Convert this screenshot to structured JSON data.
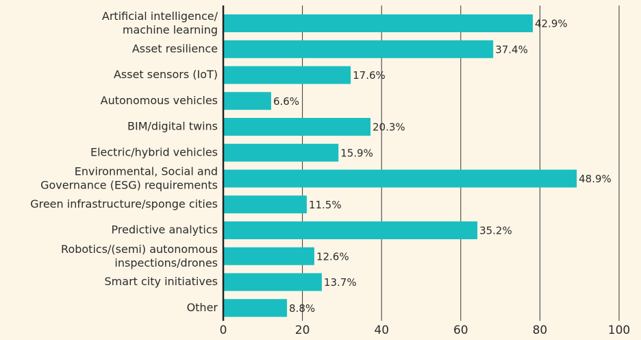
{
  "chart_data": {
    "type": "barh",
    "categories": [
      "Artificial intelligence/\nmachine learning",
      "Asset resilience",
      "Asset sensors (IoT)",
      "Autonomous vehicles",
      "BIM/digital twins",
      "Electric/hybrid vehicles",
      "Environmental, Social and\nGovernance (ESG) requirements",
      "Green infrastructure/sponge cities",
      "Predictive analytics",
      "Robotics/(semi) autonomous\ninspections/drones",
      "Smart city initiatives",
      "Other"
    ],
    "values": [
      78.2,
      68.2,
      32.2,
      12.1,
      37.2,
      29.1,
      89.3,
      21.1,
      64.2,
      23.0,
      24.9,
      16.1
    ],
    "annotations": [
      "42.9%",
      "37.4%",
      "17.6%",
      "6.6%",
      "20.3%",
      "15.9%",
      "48.9%",
      "11.5%",
      "35.2%",
      "12.6%",
      "13.7%",
      "8.8%"
    ],
    "color": "#1bbec0",
    "xlim": [
      0,
      100
    ],
    "xticks": [
      0,
      20,
      40,
      60,
      80,
      100
    ],
    "grid": true
  }
}
